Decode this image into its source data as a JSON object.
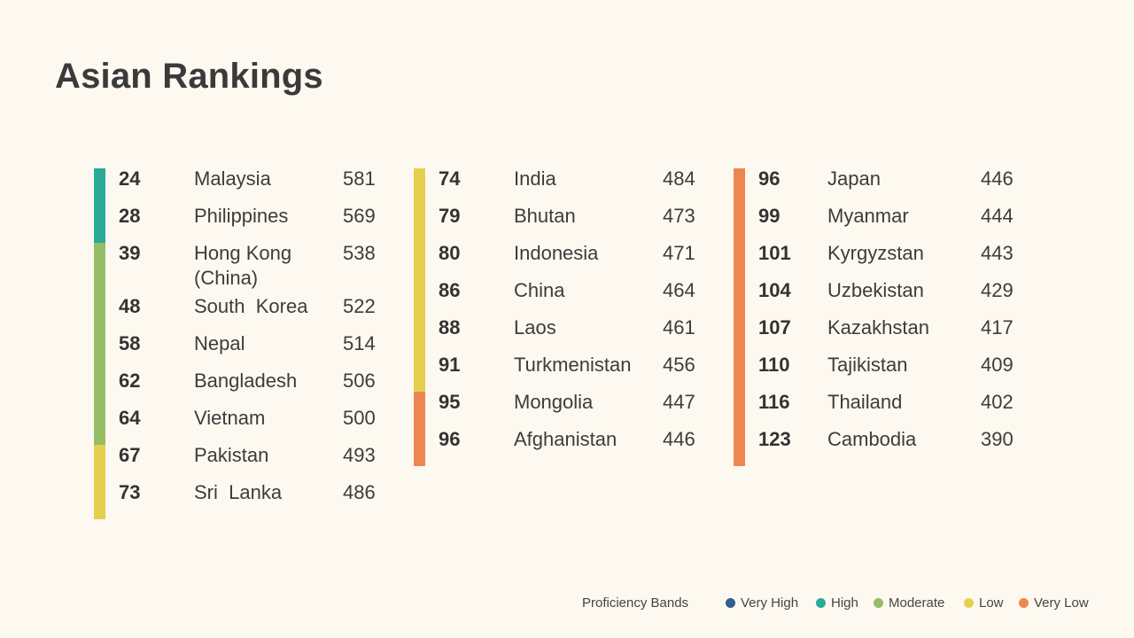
{
  "title": "Asian Rankings",
  "colors": {
    "very_high": "#2f5f8a",
    "high": "#2aab97",
    "moderate": "#96bd68",
    "low": "#e5cf4f",
    "very_low": "#ee8652"
  },
  "columns": [
    {
      "rows": [
        {
          "rank": "24",
          "country": "Malaysia",
          "score": "581",
          "band": "high"
        },
        {
          "rank": "28",
          "country": "Philippines",
          "score": "569",
          "band": "high"
        },
        {
          "rank": "39",
          "country": "Hong Kong (China)",
          "score": "538",
          "band": "moderate"
        },
        {
          "rank": "48",
          "country": "South  Korea",
          "score": "522",
          "band": "moderate"
        },
        {
          "rank": "58",
          "country": "Nepal",
          "score": "514",
          "band": "moderate"
        },
        {
          "rank": "62",
          "country": "Bangladesh",
          "score": "506",
          "band": "moderate"
        },
        {
          "rank": "64",
          "country": "Vietnam",
          "score": "500",
          "band": "moderate"
        },
        {
          "rank": "67",
          "country": "Pakistan",
          "score": "493",
          "band": "low"
        },
        {
          "rank": "73",
          "country": "Sri  Lanka",
          "score": "486",
          "band": "low"
        }
      ]
    },
    {
      "rows": [
        {
          "rank": "74",
          "country": "India",
          "score": "484",
          "band": "low"
        },
        {
          "rank": "79",
          "country": "Bhutan",
          "score": "473",
          "band": "low"
        },
        {
          "rank": "80",
          "country": "Indonesia",
          "score": "471",
          "band": "low"
        },
        {
          "rank": "86",
          "country": "China",
          "score": "464",
          "band": "low"
        },
        {
          "rank": "88",
          "country": "Laos",
          "score": "461",
          "band": "low"
        },
        {
          "rank": "91",
          "country": "Turkmenistan",
          "score": "456",
          "band": "low"
        },
        {
          "rank": "95",
          "country": "Mongolia",
          "score": "447",
          "band": "very_low"
        },
        {
          "rank": "96",
          "country": "Afghanistan",
          "score": "446",
          "band": "very_low"
        }
      ]
    },
    {
      "rows": [
        {
          "rank": "96",
          "country": "Japan",
          "score": "446",
          "band": "very_low"
        },
        {
          "rank": "99",
          "country": "Myanmar",
          "score": "444",
          "band": "very_low"
        },
        {
          "rank": "101",
          "country": "Kyrgyzstan",
          "score": "443",
          "band": "very_low"
        },
        {
          "rank": "104",
          "country": "Uzbekistan",
          "score": "429",
          "band": "very_low"
        },
        {
          "rank": "107",
          "country": "Kazakhstan",
          "score": "417",
          "band": "very_low"
        },
        {
          "rank": "110",
          "country": "Tajikistan",
          "score": "409",
          "band": "very_low"
        },
        {
          "rank": "116",
          "country": "Thailand",
          "score": "402",
          "band": "very_low"
        },
        {
          "rank": "123",
          "country": "Cambodia",
          "score": "390",
          "band": "very_low"
        }
      ]
    }
  ],
  "legend": {
    "title": "Proficiency Bands",
    "items": [
      {
        "label": "Very High",
        "band": "very_high"
      },
      {
        "label": "High",
        "band": "high"
      },
      {
        "label": "Moderate",
        "band": "moderate"
      },
      {
        "label": "Low",
        "band": "low"
      },
      {
        "label": "Very Low",
        "band": "very_low"
      }
    ]
  }
}
